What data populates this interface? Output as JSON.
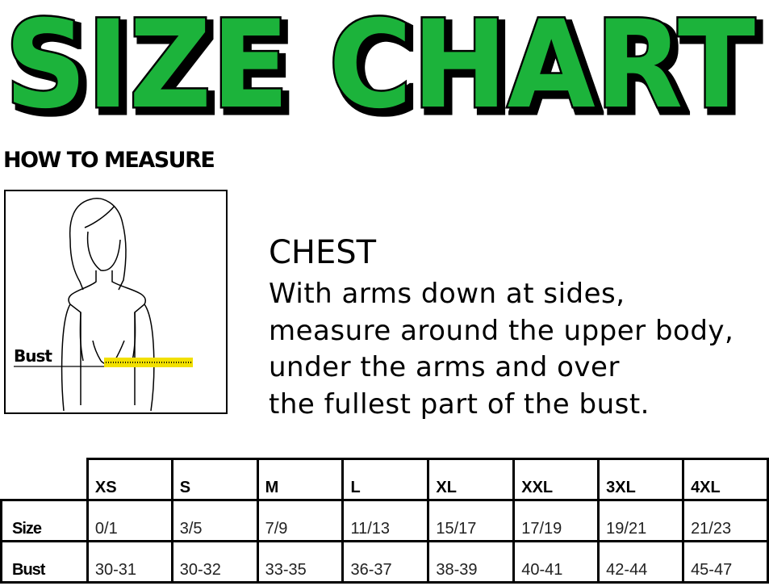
{
  "title": "SIZE CHART",
  "title_color": "#1db33b",
  "how_to_measure": "HOW TO MEASURE",
  "illustration": {
    "label": "Bust",
    "tape_color": "#f2e000"
  },
  "chest": {
    "heading": "CHEST",
    "lines": [
      "With arms down at sides,",
      "measure around the upper body,",
      "under the arms and over",
      "the fullest part of the bust."
    ]
  },
  "table": {
    "columns": [
      "XS",
      "S",
      "M",
      "L",
      "XL",
      "XXL",
      "3XL",
      "4XL"
    ],
    "rows": [
      {
        "label": "Size",
        "values": [
          "0/1",
          "3/5",
          "7/9",
          "11/13",
          "15/17",
          "17/19",
          "19/21",
          "21/23"
        ]
      },
      {
        "label": "Bust",
        "values": [
          "30-31",
          "30-32",
          "33-35",
          "36-37",
          "38-39",
          "40-41",
          "42-44",
          "45-47"
        ]
      }
    ]
  }
}
